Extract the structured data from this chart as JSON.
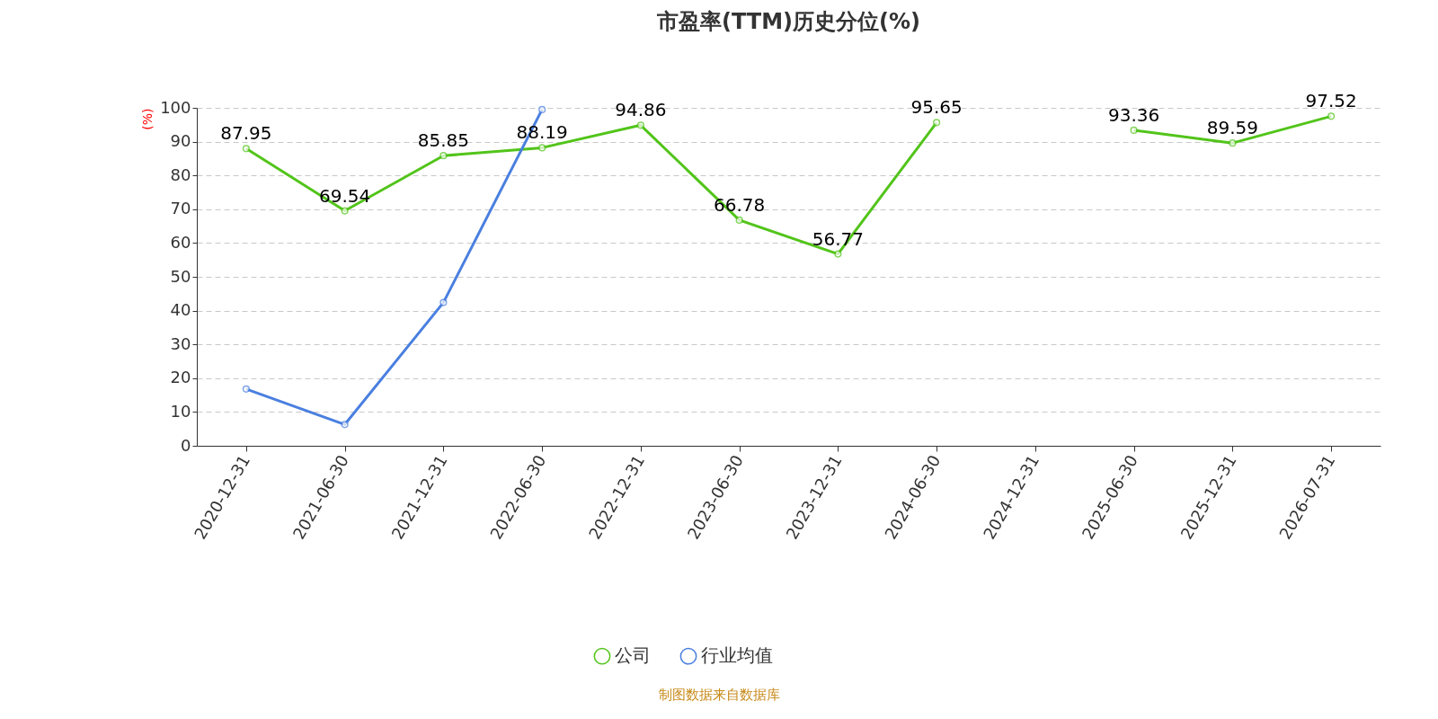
{
  "chart_data": {
    "type": "line",
    "title": "市盈率(TTM)历史分位(%)",
    "ylabel": "(%)",
    "categories": [
      "2020-12-31",
      "2021-06-30",
      "2021-12-31",
      "2022-06-30",
      "2022-12-31",
      "2023-06-30",
      "2023-12-31",
      "2024-06-30",
      "2024-12-31",
      "2025-06-30",
      "2025-12-31",
      "2026-07-31"
    ],
    "series": [
      {
        "name": "公司",
        "color": "#52c41a",
        "values": [
          87.95,
          69.54,
          85.85,
          88.19,
          94.86,
          66.78,
          56.77,
          95.65,
          null,
          93.36,
          89.59,
          97.52
        ],
        "value_labels": [
          "87.95",
          "69.54",
          "85.85",
          "88.19",
          "94.86",
          "66.78",
          "56.77",
          "95.65",
          null,
          "93.36",
          "89.59",
          "97.52"
        ]
      },
      {
        "name": "行业均值",
        "color": "#4a7fe0",
        "values": [
          16.8,
          6.3,
          42.4,
          99.5,
          null,
          null,
          null,
          null,
          null,
          null,
          null,
          null
        ]
      }
    ],
    "ylim": [
      0,
      100
    ],
    "yticks": [
      0,
      10,
      20,
      30,
      40,
      50,
      60,
      70,
      80,
      90,
      100
    ],
    "grid": "y",
    "marker": "circle",
    "legend": "bottom",
    "annotations": [
      "制图数据来自数据库"
    ]
  }
}
